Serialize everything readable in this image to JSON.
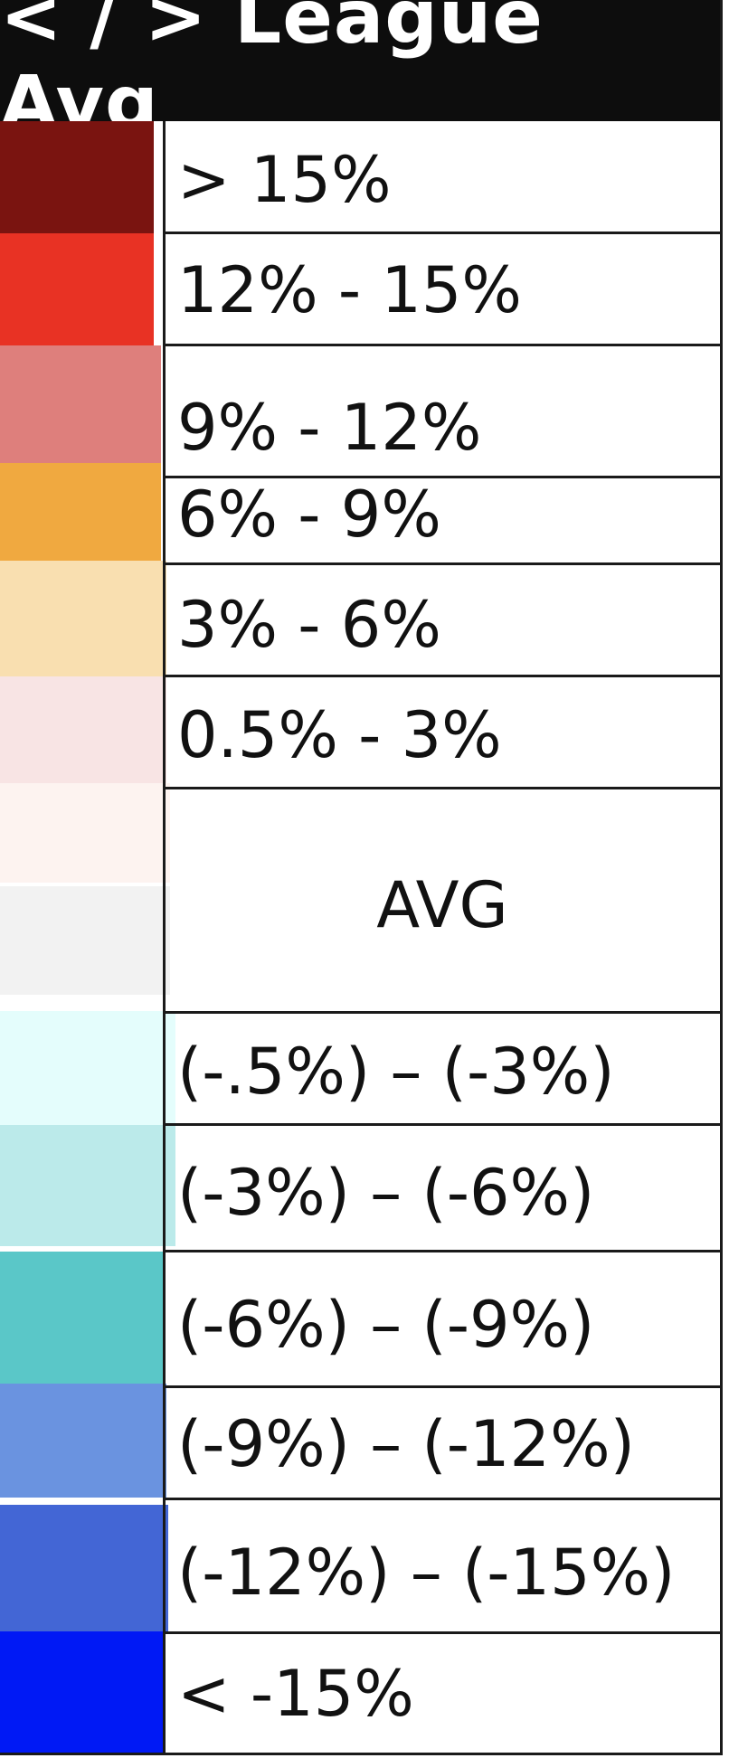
{
  "legend": {
    "title": "< / > League Avg",
    "rows": [
      {
        "label": "> 15%",
        "color": "#7a1410"
      },
      {
        "label": "12% - 15%",
        "color": "#e83224"
      },
      {
        "label": "9% - 12%",
        "color": "#de7f7c"
      },
      {
        "label": "6% - 9%",
        "color": "#f0a940"
      },
      {
        "label": "3% - 6%",
        "color": "#f9dfb0"
      },
      {
        "label": "0.5% - 3%",
        "color": "#f8e4e4"
      },
      {
        "label": "AVG",
        "colors": [
          "#fdf3f0",
          "#f2f2f2"
        ]
      },
      {
        "label": "(-.5%) – (-3%)",
        "color": "#e4fdfc"
      },
      {
        "label": "(-3%) – (-6%)",
        "color": "#bbeaea"
      },
      {
        "label": "(-6%) – (-9%)",
        "color": "#5ac7c8"
      },
      {
        "label": "(-9%) – (-12%)",
        "color": "#6a93e0"
      },
      {
        "label": "(-12%) – (-15%)",
        "color": "#4366d5"
      },
      {
        "label": "< -15%",
        "color": "#0019f5"
      }
    ]
  }
}
